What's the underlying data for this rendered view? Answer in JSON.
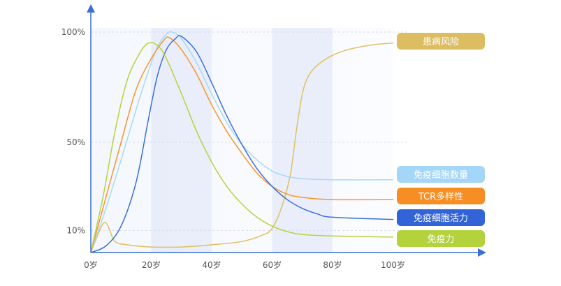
{
  "chart_data": {
    "type": "line",
    "title": "",
    "xlabel": "",
    "ylabel": "",
    "x_ticks": [
      {
        "value": 0,
        "label": "0岁"
      },
      {
        "value": 20,
        "label": "20岁"
      },
      {
        "value": 40,
        "label": "40岁"
      },
      {
        "value": 60,
        "label": "60岁"
      },
      {
        "value": 80,
        "label": "80岁"
      },
      {
        "value": 100,
        "label": "100岁"
      }
    ],
    "y_ticks": [
      {
        "value": 10,
        "label": "10%"
      },
      {
        "value": 50,
        "label": "50%"
      },
      {
        "value": 100,
        "label": "100%"
      }
    ],
    "xlim": [
      0,
      130
    ],
    "ylim": [
      0,
      100
    ],
    "grid": true,
    "shaded_bands": [
      [
        20,
        40
      ],
      [
        60,
        80
      ]
    ],
    "legend_position": "right",
    "series": [
      {
        "name": "患病风险",
        "color": "#dfc060",
        "label_color": "#ddbd62",
        "points": [
          [
            0,
            0
          ],
          [
            2,
            7
          ],
          [
            4,
            13
          ],
          [
            5,
            13.5
          ],
          [
            6,
            11
          ],
          [
            8,
            5
          ],
          [
            12,
            3.5
          ],
          [
            20,
            2.5
          ],
          [
            30,
            2.5
          ],
          [
            40,
            3.5
          ],
          [
            50,
            5
          ],
          [
            57,
            8
          ],
          [
            60,
            11
          ],
          [
            63,
            20
          ],
          [
            66,
            35
          ],
          [
            68,
            55
          ],
          [
            70,
            72
          ],
          [
            72,
            80
          ],
          [
            75,
            85
          ],
          [
            80,
            89.5
          ],
          [
            85,
            92
          ],
          [
            90,
            93.5
          ],
          [
            95,
            94.5
          ],
          [
            100,
            95
          ]
        ]
      },
      {
        "name": "免疫细胞数量",
        "color": "#a9d8f5",
        "label_color": "#a4d6f7",
        "points": [
          [
            0,
            0
          ],
          [
            5,
            20
          ],
          [
            10,
            42
          ],
          [
            15,
            65
          ],
          [
            19,
            82
          ],
          [
            22,
            93
          ],
          [
            25,
            99
          ],
          [
            27,
            100
          ],
          [
            30,
            97
          ],
          [
            35,
            86
          ],
          [
            40,
            72
          ],
          [
            45,
            59
          ],
          [
            50,
            49
          ],
          [
            55,
            42
          ],
          [
            60,
            37
          ],
          [
            65,
            34.5
          ],
          [
            70,
            33.5
          ],
          [
            80,
            33
          ],
          [
            100,
            33
          ]
        ]
      },
      {
        "name": "TCR多样性",
        "color": "#f7962b",
        "label_color": "#f68e23",
        "points": [
          [
            0,
            0
          ],
          [
            5,
            25
          ],
          [
            10,
            50
          ],
          [
            15,
            74
          ],
          [
            20,
            88
          ],
          [
            24,
            96
          ],
          [
            26,
            97.5
          ],
          [
            30,
            92
          ],
          [
            35,
            81
          ],
          [
            40,
            67
          ],
          [
            45,
            55
          ],
          [
            50,
            45
          ],
          [
            55,
            36
          ],
          [
            60,
            30
          ],
          [
            65,
            26.5
          ],
          [
            70,
            25
          ],
          [
            80,
            24
          ],
          [
            100,
            24
          ]
        ]
      },
      {
        "name": "免疫细胞活力",
        "color": "#3c6fd9",
        "label_color": "#3264d8",
        "points": [
          [
            0,
            0
          ],
          [
            5,
            3
          ],
          [
            10,
            12
          ],
          [
            15,
            32
          ],
          [
            19,
            60
          ],
          [
            22,
            80
          ],
          [
            25,
            92
          ],
          [
            28,
            97
          ],
          [
            30,
            98
          ],
          [
            35,
            91
          ],
          [
            40,
            77
          ],
          [
            45,
            62
          ],
          [
            50,
            49
          ],
          [
            55,
            38
          ],
          [
            60,
            30
          ],
          [
            65,
            24
          ],
          [
            70,
            20
          ],
          [
            75,
            17.5
          ],
          [
            80,
            16
          ],
          [
            100,
            15
          ]
        ]
      },
      {
        "name": "免疫力",
        "color": "#b7d33d",
        "label_color": "#b3d23c",
        "points": [
          [
            0,
            0
          ],
          [
            4,
            25
          ],
          [
            8,
            55
          ],
          [
            12,
            78
          ],
          [
            16,
            90
          ],
          [
            19,
            95
          ],
          [
            22,
            94
          ],
          [
            25,
            88
          ],
          [
            30,
            72
          ],
          [
            35,
            55
          ],
          [
            40,
            41
          ],
          [
            45,
            30
          ],
          [
            50,
            22
          ],
          [
            55,
            16
          ],
          [
            60,
            12
          ],
          [
            65,
            9.5
          ],
          [
            70,
            8.2
          ],
          [
            80,
            7.5
          ],
          [
            100,
            7
          ]
        ]
      }
    ],
    "legend_order": [
      "患病风险",
      "免疫细胞数量",
      "TCR多样性",
      "免疫细胞活力",
      "免疫力"
    ]
  }
}
